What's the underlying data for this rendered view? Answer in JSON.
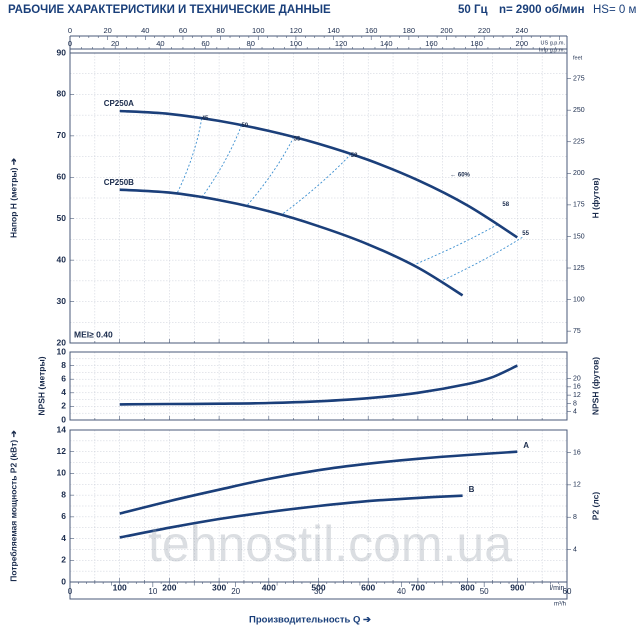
{
  "header": {
    "title": "РАБОЧИЕ ХАРАКТЕРИСТИКИ И ТЕХНИЧЕСКИЕ ДАННЫЕ",
    "frequency": "50 Гц",
    "speed": "n= 2900 об/мин",
    "hs": "HS= 0 м"
  },
  "colors": {
    "curve": "#1b3f7a",
    "efficiency": "#3c8fd0",
    "axis": "#1a2b4c",
    "frame": "#4a5a78",
    "grid": "#c9ced8"
  },
  "chart_data": [
    {
      "type": "line",
      "name": "head",
      "ylabel": "Напор H (метры)",
      "y2label": "H (футов)",
      "xlim": [
        0,
        1000
      ],
      "ylim": [
        20,
        90
      ],
      "yticks": [
        20,
        30,
        40,
        50,
        60,
        70,
        80,
        90
      ],
      "y2ticks": [
        75,
        100,
        125,
        150,
        175,
        200,
        225,
        250,
        275
      ],
      "y2unit": "feet",
      "series": [
        {
          "name": "CP250A",
          "x": [
            100,
            200,
            300,
            400,
            500,
            600,
            700,
            800,
            900
          ],
          "y": [
            76,
            75.3,
            73.6,
            71.2,
            68.1,
            64.2,
            59.3,
            53.2,
            45.5
          ]
        },
        {
          "name": "CP250B",
          "x": [
            100,
            200,
            300,
            400,
            500,
            600,
            700,
            790
          ],
          "y": [
            57,
            56.3,
            54.5,
            51.8,
            48.2,
            43.8,
            38.2,
            31.5
          ]
        }
      ],
      "efficiency_labels": [
        {
          "text": "45",
          "x": 265,
          "y": 73.2
        },
        {
          "text": "50",
          "x": 345,
          "y": 71.5
        },
        {
          "text": "55",
          "x": 450,
          "y": 68.3
        },
        {
          "text": "58",
          "x": 565,
          "y": 64.3
        },
        {
          "text": "← 60%",
          "x": 765,
          "y": 59.6
        },
        {
          "text": "58",
          "x": 870,
          "y": 52.5
        },
        {
          "text": "55",
          "x": 910,
          "y": 45.5
        }
      ],
      "annotation": "MEI≥ 0.40"
    },
    {
      "type": "line",
      "name": "npsh",
      "ylabel": "NPSH (метры)",
      "y2label": "NPSH (футов)",
      "xlim": [
        0,
        1000
      ],
      "ylim": [
        0,
        10
      ],
      "yticks": [
        0,
        2,
        4,
        6,
        8,
        10
      ],
      "y2ticks": [
        4,
        8,
        12,
        16,
        20
      ],
      "series": [
        {
          "name": "NPSH",
          "x": [
            100,
            200,
            300,
            400,
            500,
            600,
            700,
            800,
            850,
            900
          ],
          "y": [
            2.3,
            2.35,
            2.4,
            2.5,
            2.75,
            3.2,
            4.0,
            5.3,
            6.3,
            8.0
          ]
        }
      ]
    },
    {
      "type": "line",
      "name": "power",
      "ylabel": "Потребляемая мощность P2 (kBт)",
      "y2label": "P2 (лс)",
      "xlabel": "Производительность Q",
      "xunit": "l/min",
      "xlim": [
        0,
        1000
      ],
      "ylim": [
        0,
        14
      ],
      "xticks": [
        100,
        200,
        300,
        400,
        500,
        600,
        700,
        800,
        900
      ],
      "yticks": [
        0,
        2,
        4,
        6,
        8,
        10,
        12,
        14
      ],
      "y2ticks": [
        4,
        8,
        12,
        16
      ],
      "series": [
        {
          "name": "A",
          "x": [
            100,
            200,
            300,
            400,
            500,
            600,
            700,
            800,
            900
          ],
          "y": [
            6.3,
            7.45,
            8.5,
            9.5,
            10.3,
            10.9,
            11.35,
            11.7,
            12.0
          ]
        },
        {
          "name": "B",
          "x": [
            100,
            200,
            300,
            400,
            500,
            600,
            700,
            790
          ],
          "y": [
            4.1,
            5.0,
            5.8,
            6.45,
            7.0,
            7.45,
            7.75,
            7.95
          ]
        }
      ]
    }
  ],
  "top_axes": {
    "us_ticks": [
      0,
      20,
      40,
      60,
      80,
      100,
      120,
      140,
      160,
      180,
      200,
      220,
      240
    ],
    "us_unit": "US g.p.m.",
    "imp_ticks": [
      0,
      20,
      40,
      60,
      80,
      100,
      120,
      140,
      160,
      180,
      200
    ],
    "imp_unit": "Imp g.p.m.",
    "us_max": 264,
    "imp_max": 220
  },
  "bottom_axis": {
    "ticks": [
      0,
      10,
      20,
      30,
      40,
      50,
      60
    ],
    "unit": "m³/h",
    "max": 60
  },
  "feet_unit": "feet",
  "watermark": "tehnostil.com.ua"
}
